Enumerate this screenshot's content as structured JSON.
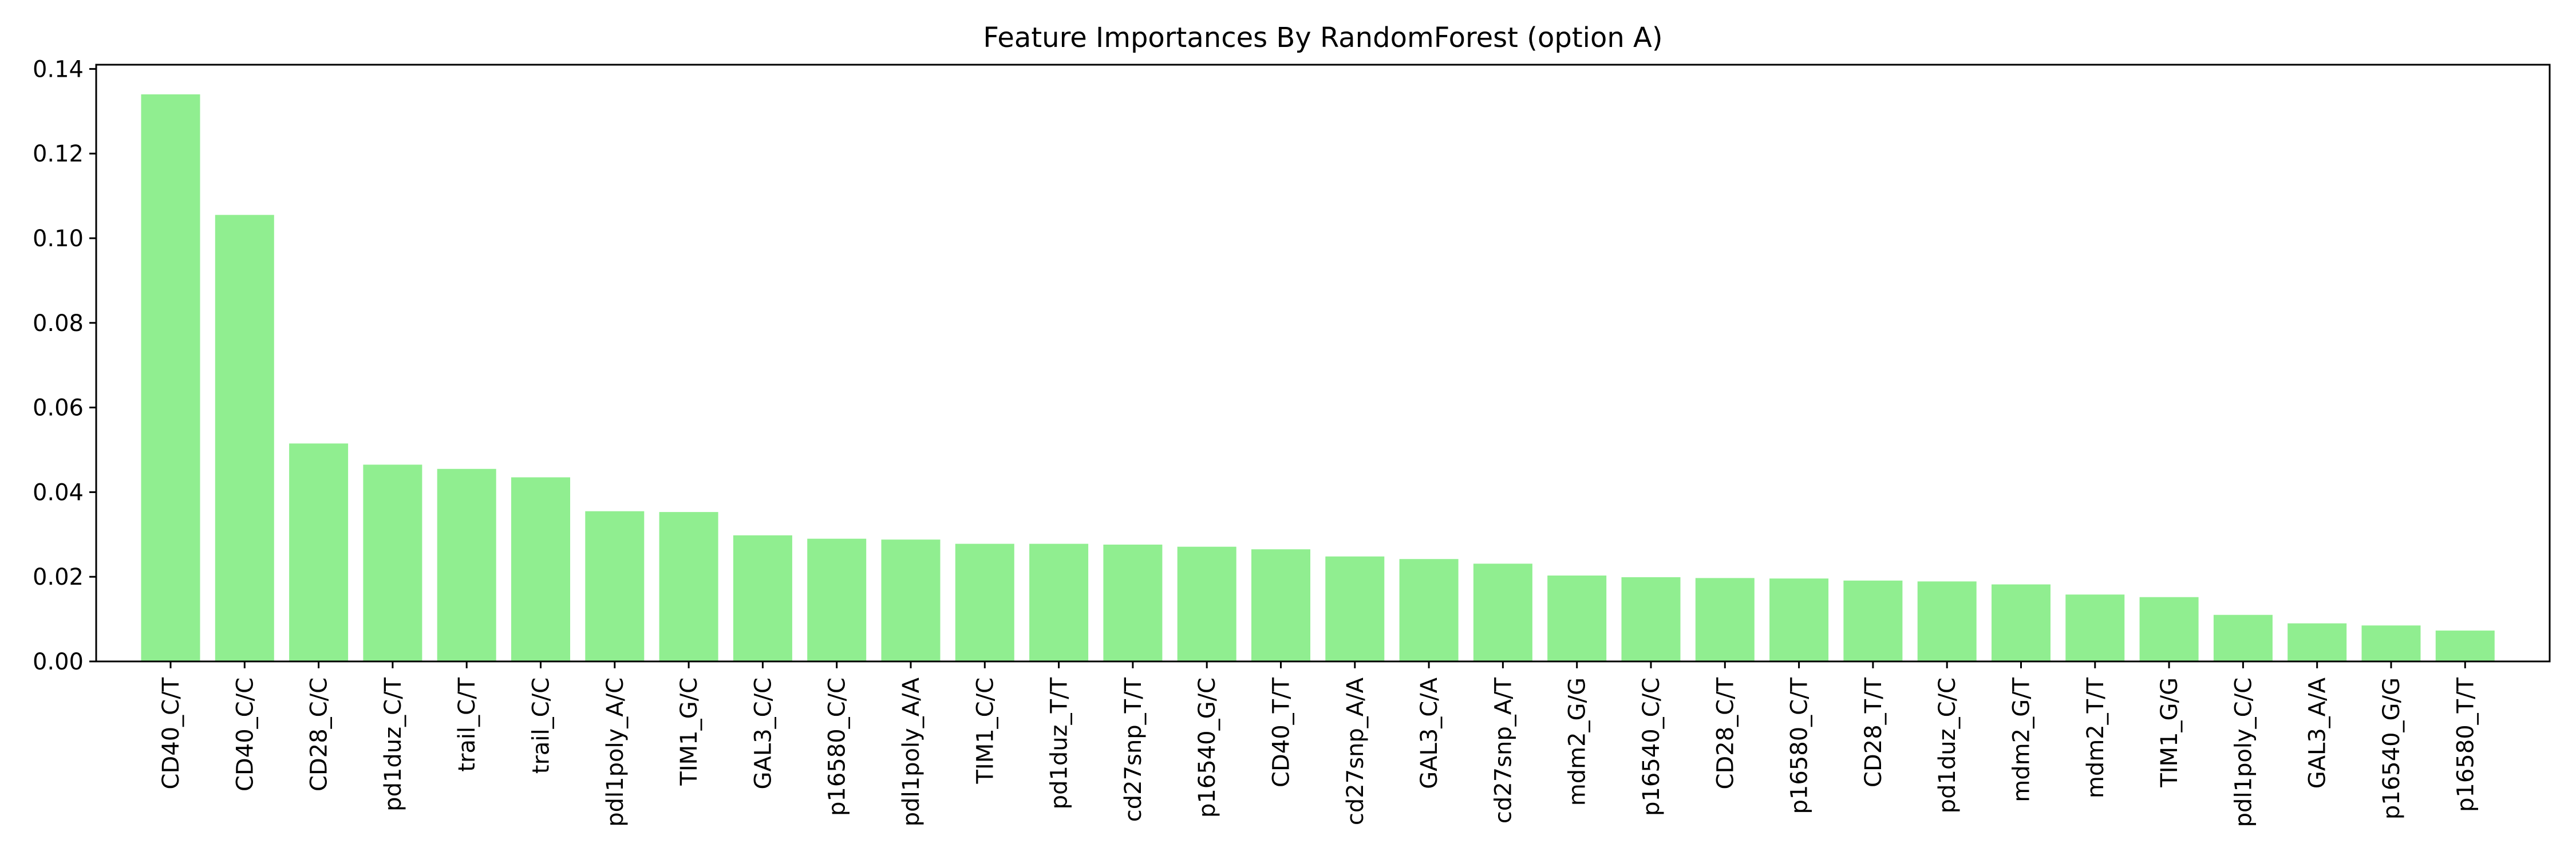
{
  "chart_data": {
    "type": "bar",
    "title": "Feature Importances By RandomForest (option A)",
    "xlabel": "",
    "ylabel": "",
    "ylim": [
      0,
      0.141
    ],
    "yticks": [
      "0.00",
      "0.02",
      "0.04",
      "0.06",
      "0.08",
      "0.10",
      "0.12",
      "0.14"
    ],
    "bar_color": "#90ee90",
    "grid": false,
    "legend": "none",
    "categories": [
      "CD40_C/T",
      "CD40_C/C",
      "CD28_C/C",
      "pd1duz_C/T",
      "trail_C/T",
      "trail_C/C",
      "pdl1poly_A/C",
      "TIM1_G/C",
      "GAL3_C/C",
      "p16580_C/C",
      "pdl1poly_A/A",
      "TIM1_C/C",
      "pd1duz_T/T",
      "cd27snp_T/T",
      "p16540_G/C",
      "CD40_T/T",
      "cd27snp_A/A",
      "GAL3_C/A",
      "cd27snp_A/T",
      "mdm2_G/G",
      "p16540_C/C",
      "CD28_C/T",
      "p16580_C/T",
      "CD28_T/T",
      "pd1duz_C/C",
      "mdm2_G/T",
      "mdm2_T/T",
      "TIM1_G/G",
      "pdl1poly_C/C",
      "GAL3_A/A",
      "p16540_G/G",
      "p16580_T/T"
    ],
    "values": [
      0.134,
      0.1055,
      0.0515,
      0.0465,
      0.0455,
      0.0435,
      0.0355,
      0.0353,
      0.0298,
      0.029,
      0.0288,
      0.0278,
      0.0278,
      0.0276,
      0.0271,
      0.0265,
      0.0248,
      0.0242,
      0.0231,
      0.0203,
      0.0199,
      0.0197,
      0.0196,
      0.0191,
      0.0189,
      0.0182,
      0.0158,
      0.0152,
      0.011,
      0.009,
      0.0085,
      0.0073
    ]
  }
}
